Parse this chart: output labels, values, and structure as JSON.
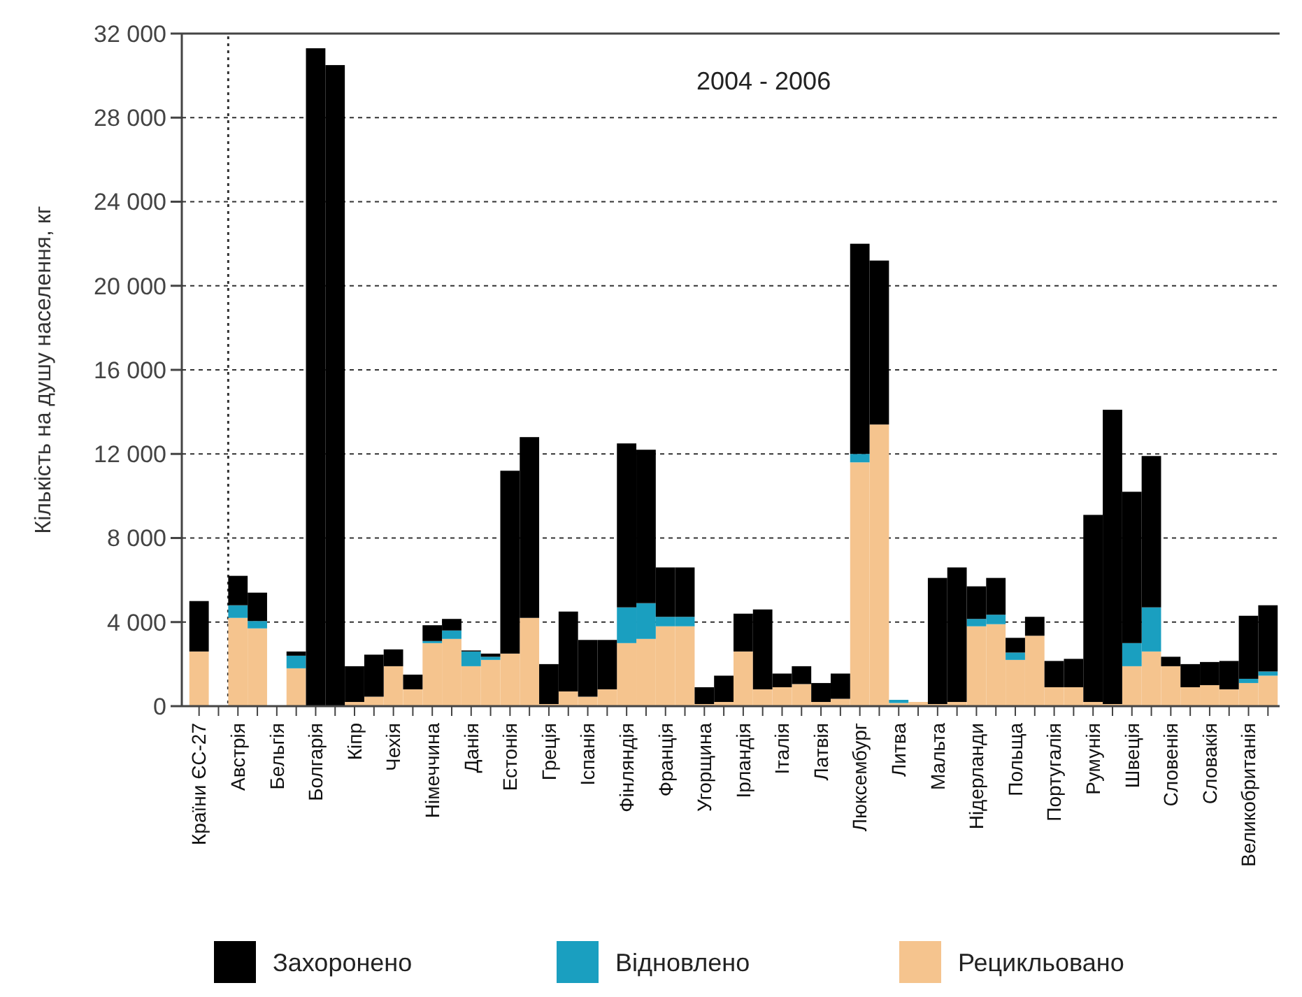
{
  "chart_data": {
    "type": "bar",
    "stacked": true,
    "title": "2004 - 2006",
    "ylabel": "Кількість на душу населення, кг",
    "categories": [
      "Країни ЄС-27",
      null,
      "Австрія",
      null,
      "Бельгія",
      null,
      "Болгарія",
      null,
      "Кіпр",
      null,
      "Чехія",
      null,
      "Німеччина",
      null,
      "Данія",
      null,
      "Естонія",
      null,
      "Греція",
      null,
      "Іспанія",
      null,
      "Фінляндія",
      null,
      "Франція",
      null,
      "Угорщина",
      null,
      "Ірландія",
      null,
      "Італія",
      null,
      "Латвія",
      null,
      "Люксембург",
      null,
      "Литва",
      null,
      "Мальта",
      null,
      "Нідерланди",
      null,
      "Польща",
      null,
      "Португалія",
      null,
      "Румунія",
      null,
      "Швеція",
      null,
      "Словенія",
      null,
      "Словакія",
      null,
      "Великобританія",
      null
    ],
    "series": [
      {
        "name": "Рецикльовано",
        "color": "#f5c48e",
        "values": [
          2600,
          null,
          4200,
          3700,
          null,
          1800,
          0,
          0,
          200,
          450,
          1900,
          800,
          3000,
          3200,
          1900,
          2200,
          2500,
          4200,
          100,
          700,
          450,
          800,
          3000,
          3200,
          3800,
          3800,
          100,
          200,
          2600,
          800,
          900,
          1050,
          200,
          350,
          11600,
          13400,
          150,
          200,
          100,
          200,
          3800,
          3900,
          2200,
          3350,
          900,
          900,
          200,
          100,
          1900,
          2600,
          1900,
          900,
          1000,
          800,
          1100,
          1450
        ]
      },
      {
        "name": "Відновлено",
        "color": "#1a9fc0",
        "values": [
          0,
          null,
          600,
          350,
          null,
          600,
          0,
          0,
          0,
          0,
          0,
          0,
          100,
          400,
          700,
          150,
          0,
          0,
          0,
          0,
          0,
          0,
          1700,
          1700,
          450,
          450,
          0,
          0,
          0,
          0,
          0,
          0,
          0,
          0,
          400,
          0,
          150,
          0,
          0,
          0,
          350,
          450,
          350,
          0,
          0,
          0,
          0,
          0,
          1100,
          2100,
          0,
          0,
          0,
          0,
          200,
          200
        ]
      },
      {
        "name": "Захоронено",
        "color": "#000000",
        "values": [
          2400,
          null,
          1400,
          1350,
          null,
          200,
          31300,
          30500,
          1700,
          2000,
          800,
          700,
          750,
          550,
          50,
          150,
          8700,
          8600,
          1900,
          3800,
          2700,
          2350,
          7800,
          7300,
          2350,
          2350,
          800,
          1250,
          1800,
          3800,
          650,
          850,
          900,
          1200,
          10000,
          7800,
          0,
          0,
          6000,
          6400,
          1550,
          1750,
          700,
          900,
          1250,
          1350,
          8900,
          14000,
          7200,
          7200,
          450,
          1100,
          1100,
          1350,
          3000,
          3150
        ]
      }
    ],
    "ylim": [
      0,
      32000
    ],
    "yticks": [
      0,
      {
        "value": 4000,
        "label": "4 000"
      },
      {
        "value": 8000,
        "label": "8 000"
      },
      {
        "value": 12000,
        "label": "12 000"
      },
      {
        "value": 16000,
        "label": "16 000"
      },
      {
        "value": 20000,
        "label": "20 000"
      },
      {
        "value": 24000,
        "label": "24 000"
      },
      {
        "value": 28000,
        "label": "28 000"
      },
      {
        "value": 32000,
        "label": "32 000"
      }
    ],
    "grid": "y",
    "legend": "bottom"
  }
}
